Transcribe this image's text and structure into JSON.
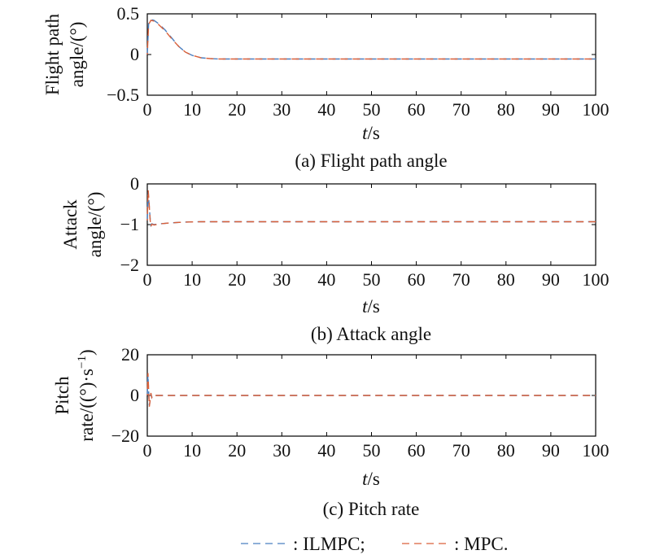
{
  "colors": {
    "ilmpc": "#4a7fc0",
    "mpc": "#d9603a"
  },
  "legend": {
    "ilmpc_label": ": ILMPC;",
    "mpc_label": ": MPC."
  },
  "chart_data": [
    {
      "type": "line",
      "id": "a",
      "caption": "(a) Flight path angle",
      "ylabel_lines": [
        "Flight path",
        "angle/(°)"
      ],
      "xlabel_italic": "t",
      "xlabel_unit": "/s",
      "xlim": [
        0,
        100
      ],
      "ylim": [
        -0.5,
        0.5
      ],
      "xticks": [
        0,
        10,
        20,
        30,
        40,
        50,
        60,
        70,
        80,
        90,
        100
      ],
      "yticks": [
        0.5,
        0,
        -0.5
      ],
      "ytick_labels": [
        "0.5",
        "0",
        "−0.5"
      ],
      "grid": false,
      "series": [
        {
          "key": "ilmpc",
          "x": [
            0,
            0.3,
            0.8,
            1.5,
            2.5,
            4,
            5.5,
            7,
            8.5,
            10,
            12,
            14,
            16,
            20,
            30,
            50,
            100
          ],
          "y": [
            0.0,
            0.38,
            0.43,
            0.42,
            0.38,
            0.3,
            0.2,
            0.1,
            0.03,
            -0.01,
            -0.04,
            -0.05,
            -0.055,
            -0.055,
            -0.055,
            -0.055,
            -0.055
          ]
        },
        {
          "key": "mpc",
          "x": [
            0,
            0.3,
            0.8,
            1.5,
            2.5,
            4,
            5.5,
            7,
            8.5,
            10,
            12,
            14,
            16,
            20,
            30,
            50,
            100
          ],
          "y": [
            0.0,
            0.37,
            0.42,
            0.41,
            0.37,
            0.29,
            0.19,
            0.1,
            0.03,
            -0.01,
            -0.04,
            -0.05,
            -0.055,
            -0.055,
            -0.055,
            -0.055,
            -0.055
          ]
        }
      ]
    },
    {
      "type": "line",
      "id": "b",
      "caption": "(b) Attack angle",
      "ylabel_lines": [
        "Attack",
        "angle/(°)"
      ],
      "xlabel_italic": "t",
      "xlabel_unit": "/s",
      "xlim": [
        0,
        100
      ],
      "ylim": [
        -2,
        0
      ],
      "xticks": [
        0,
        10,
        20,
        30,
        40,
        50,
        60,
        70,
        80,
        90,
        100
      ],
      "yticks": [
        0,
        -1,
        -2
      ],
      "ytick_labels": [
        "0",
        "−1",
        "−2"
      ],
      "grid": false,
      "series": [
        {
          "key": "ilmpc",
          "x": [
            0,
            0.2,
            0.4,
            0.6,
            0.8,
            1.0,
            1.5,
            2,
            3,
            5,
            8,
            12,
            20,
            40,
            100
          ],
          "y": [
            -0.9,
            -0.2,
            -0.5,
            -0.8,
            -1.02,
            -0.98,
            -1.0,
            -0.99,
            -0.98,
            -0.96,
            -0.94,
            -0.93,
            -0.93,
            -0.93,
            -0.93
          ]
        },
        {
          "key": "mpc",
          "x": [
            0,
            0.2,
            0.4,
            0.6,
            0.8,
            1.0,
            1.5,
            2,
            3,
            5,
            8,
            12,
            20,
            40,
            100
          ],
          "y": [
            -0.9,
            -0.15,
            -0.45,
            -0.85,
            -1.05,
            -0.99,
            -1.01,
            -1.0,
            -0.98,
            -0.96,
            -0.94,
            -0.93,
            -0.93,
            -0.93,
            -0.93
          ]
        }
      ]
    },
    {
      "type": "line",
      "id": "c",
      "caption": "(c) Pitch rate",
      "ylabel_line1": "Pitch",
      "ylabel_line2_prefix": "rate/((°)·s",
      "ylabel_line2_sup": "−1",
      "ylabel_line2_suffix": ")",
      "xlabel_italic": "t",
      "xlabel_unit": "/s",
      "xlim": [
        0,
        100
      ],
      "ylim": [
        -20,
        20
      ],
      "xticks": [
        0,
        10,
        20,
        30,
        40,
        50,
        60,
        70,
        80,
        90,
        100
      ],
      "yticks": [
        20,
        0,
        -20
      ],
      "ytick_labels": [
        "20",
        "0",
        "−20"
      ],
      "grid": false,
      "series": [
        {
          "key": "ilmpc",
          "x": [
            0,
            0.15,
            0.3,
            0.45,
            0.6,
            0.8,
            1.0,
            1.3,
            1.8,
            3,
            100
          ],
          "y": [
            0,
            10,
            2,
            -5,
            -3,
            1,
            -1,
            0.4,
            0,
            0,
            0
          ]
        },
        {
          "key": "mpc",
          "x": [
            0,
            0.15,
            0.3,
            0.45,
            0.6,
            0.8,
            1.0,
            1.3,
            1.8,
            3,
            100
          ],
          "y": [
            0,
            11,
            3,
            -5.5,
            -3,
            1.2,
            -1,
            0.3,
            0,
            0,
            0
          ]
        }
      ]
    }
  ]
}
